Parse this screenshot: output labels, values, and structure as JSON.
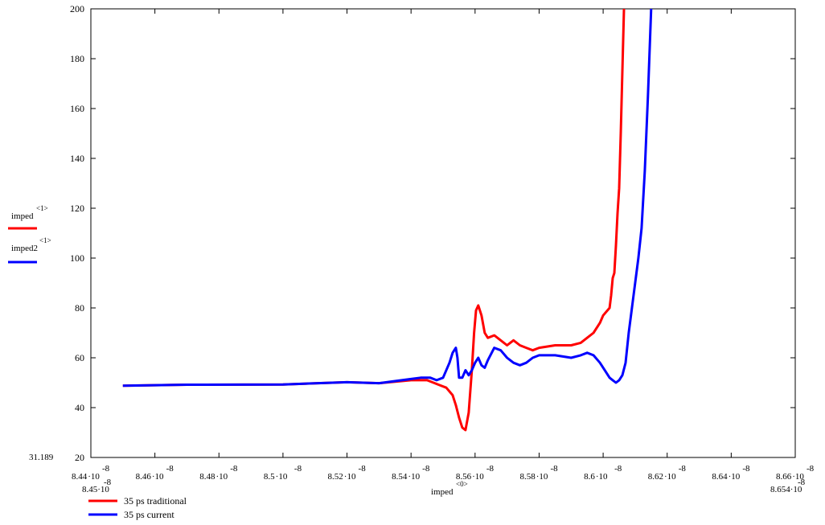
{
  "chart_data": {
    "type": "line",
    "x_ticks": [
      {
        "value": 8.44e-08,
        "mant": "8.44",
        "exp": "-8"
      },
      {
        "value": 8.46e-08,
        "mant": "8.46",
        "exp": "-8"
      },
      {
        "value": 8.48e-08,
        "mant": "8.48",
        "exp": "-8"
      },
      {
        "value": 8.5e-08,
        "mant": "8.5",
        "exp": "-8"
      },
      {
        "value": 8.52e-08,
        "mant": "8.52",
        "exp": "-8"
      },
      {
        "value": 8.54e-08,
        "mant": "8.54",
        "exp": "-8"
      },
      {
        "value": 8.56e-08,
        "mant": "8.56",
        "exp": "-8"
      },
      {
        "value": 8.58e-08,
        "mant": "8.58",
        "exp": "-8"
      },
      {
        "value": 8.6e-08,
        "mant": "8.6",
        "exp": "-8"
      },
      {
        "value": 8.62e-08,
        "mant": "8.62",
        "exp": "-8"
      },
      {
        "value": 8.64e-08,
        "mant": "8.64",
        "exp": "-8"
      },
      {
        "value": 8.66e-08,
        "mant": "8.66",
        "exp": "-8"
      }
    ],
    "y_ticks": [
      20,
      40,
      60,
      80,
      100,
      120,
      140,
      160,
      180,
      200
    ],
    "xlim": [
      8.44e-08,
      8.66e-08
    ],
    "ylim": [
      20,
      200
    ],
    "x_range_labels": {
      "min": {
        "mant": "8.45",
        "exp": "-8"
      },
      "max": {
        "mant": "8.654",
        "exp": "-8"
      }
    },
    "y_min_label": "31.189",
    "xlabel": {
      "base": "imped",
      "sup": "<0>"
    },
    "y_axis_legend": [
      {
        "base": "imped",
        "sup": "<1>",
        "color": "#ff0000"
      },
      {
        "base": "imped2",
        "sup": "<1>",
        "color": "#0000ff"
      }
    ],
    "series": [
      {
        "name": "35 ps traditional",
        "color": "#ff0000",
        "x": [
          8.45e-08,
          8.47e-08,
          8.5e-08,
          8.52e-08,
          8.53e-08,
          8.54e-08,
          8.545e-08,
          8.547e-08,
          8.549e-08,
          8.551e-08,
          8.553e-08,
          8.554e-08,
          8.555e-08,
          8.556e-08,
          8.557e-08,
          8.558e-08,
          8.559e-08,
          8.5597e-08,
          8.5603e-08,
          8.561e-08,
          8.562e-08,
          8.563e-08,
          8.564e-08,
          8.566e-08,
          8.568e-08,
          8.57e-08,
          8.572e-08,
          8.574e-08,
          8.576e-08,
          8.578e-08,
          8.58e-08,
          8.585e-08,
          8.59e-08,
          8.593e-08,
          8.595e-08,
          8.597e-08,
          8.599e-08,
          8.6e-08,
          8.602e-08,
          8.6025e-08,
          8.603e-08,
          8.6035e-08,
          8.604e-08,
          8.6045e-08,
          8.605e-08,
          8.6055e-08,
          8.606e-08,
          8.6065e-08
        ],
        "y": [
          49,
          49,
          49.5,
          50,
          50,
          51,
          51,
          50,
          49,
          48,
          45,
          41,
          36,
          32,
          31,
          38,
          55,
          70,
          79,
          81,
          77,
          70,
          68,
          69,
          67,
          65,
          67,
          65,
          64,
          63,
          64,
          65,
          65,
          66,
          68,
          70,
          74,
          77,
          80,
          85,
          92,
          94,
          105,
          118,
          128,
          150,
          175,
          200
        ]
      },
      {
        "name": "35 ps current",
        "color": "#0000ff",
        "x": [
          8.45e-08,
          8.47e-08,
          8.5e-08,
          8.52e-08,
          8.53e-08,
          8.54e-08,
          8.543e-08,
          8.546e-08,
          8.548e-08,
          8.55e-08,
          8.552e-08,
          8.553e-08,
          8.554e-08,
          8.5545e-08,
          8.555e-08,
          8.556e-08,
          8.557e-08,
          8.558e-08,
          8.559e-08,
          8.56e-08,
          8.561e-08,
          8.562e-08,
          8.563e-08,
          8.564e-08,
          8.566e-08,
          8.568e-08,
          8.57e-08,
          8.572e-08,
          8.574e-08,
          8.576e-08,
          8.578e-08,
          8.58e-08,
          8.585e-08,
          8.59e-08,
          8.593e-08,
          8.595e-08,
          8.597e-08,
          8.599e-08,
          8.601e-08,
          8.602e-08,
          8.603e-08,
          8.604e-08,
          8.605e-08,
          8.606e-08,
          8.607e-08,
          8.608e-08,
          8.609e-08,
          8.61e-08,
          8.611e-08,
          8.612e-08,
          8.613e-08,
          8.614e-08,
          8.615e-08
        ],
        "y": [
          49,
          49,
          49.5,
          50,
          50,
          51.5,
          52,
          52,
          51,
          52,
          58,
          62,
          64,
          60,
          52,
          52,
          55,
          53,
          55,
          58,
          60,
          57,
          56,
          59,
          64,
          63,
          60,
          58,
          57,
          58,
          60,
          61,
          61,
          60,
          61,
          62,
          61,
          58,
          54,
          52,
          51,
          50,
          51,
          53,
          58,
          70,
          80,
          90,
          100,
          112,
          135,
          165,
          200
        ]
      }
    ]
  }
}
